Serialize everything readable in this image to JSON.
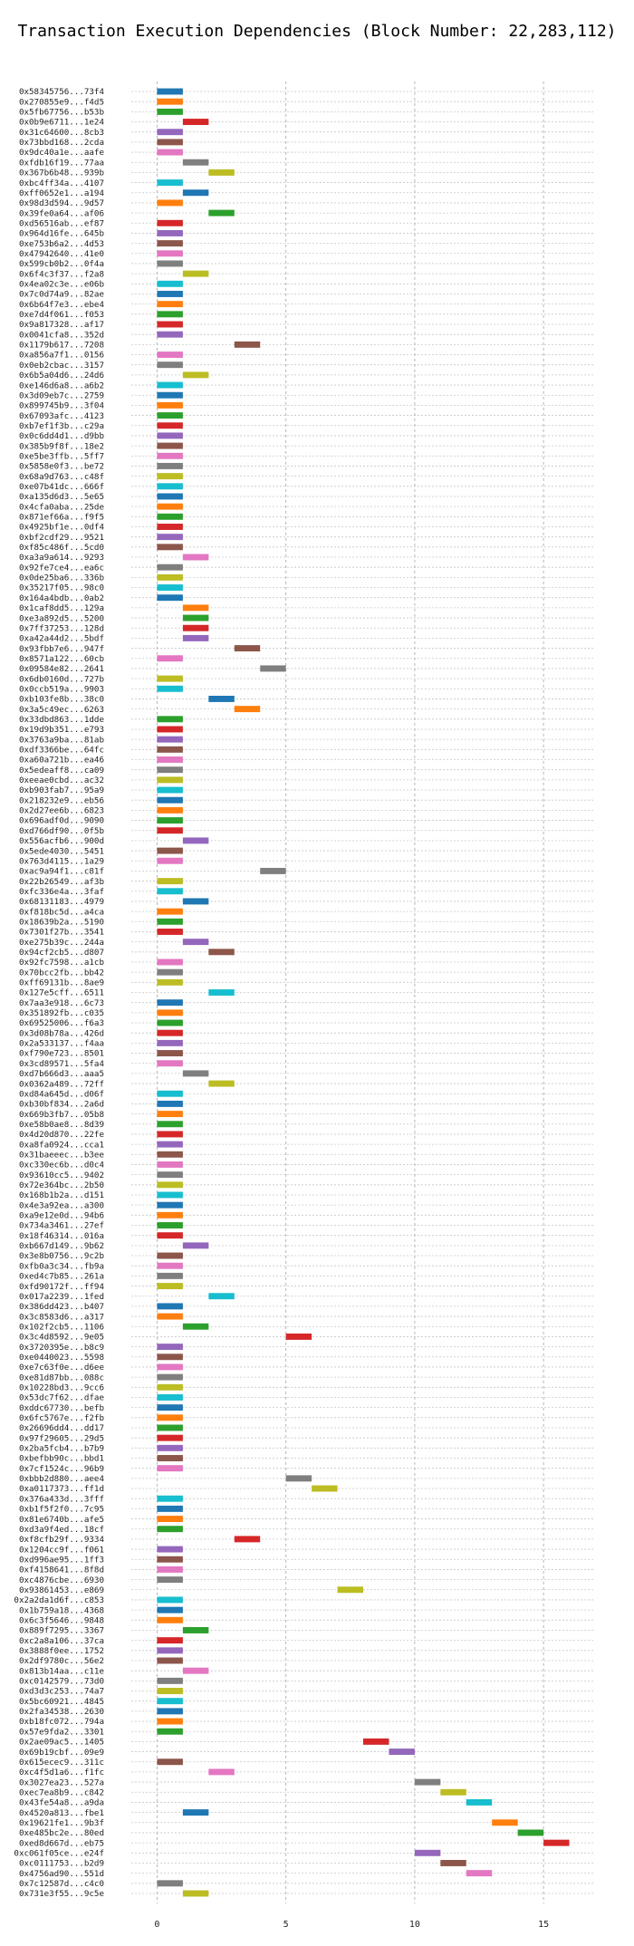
{
  "chart_data": {
    "type": "bar",
    "orientation": "horizontal",
    "title": "Transaction Execution Dependencies (Block Number: 22,283,112)",
    "xlabel": "",
    "ylabel": "",
    "xlim": [
      -1,
      17
    ],
    "xticks": [
      0,
      5,
      10,
      15
    ],
    "grid": true,
    "palette": [
      "#1f77b4",
      "#ff7f0e",
      "#2ca02c",
      "#d62728",
      "#9467bd",
      "#8c564b",
      "#e377c2",
      "#7f7f7f",
      "#bcbd22",
      "#17becf"
    ],
    "transactions": [
      {
        "label": "0x58345756...73f4",
        "start": 0,
        "end": 1
      },
      {
        "label": "0x270855e9...f4d5",
        "start": 0,
        "end": 1
      },
      {
        "label": "0x5fb67756...b53b",
        "start": 0,
        "end": 1
      },
      {
        "label": "0x0b9e6711...1e24",
        "start": 1,
        "end": 2
      },
      {
        "label": "0x31c64600...8cb3",
        "start": 0,
        "end": 1
      },
      {
        "label": "0x73bbd168...2cda",
        "start": 0,
        "end": 1
      },
      {
        "label": "0x9dc40a1e...aafe",
        "start": 0,
        "end": 1
      },
      {
        "label": "0xfdb16f19...77aa",
        "start": 1,
        "end": 2
      },
      {
        "label": "0x367b6b48...939b",
        "start": 2,
        "end": 3
      },
      {
        "label": "0xbc4ff34a...4107",
        "start": 0,
        "end": 1
      },
      {
        "label": "0xff0652e1...a194",
        "start": 1,
        "end": 2
      },
      {
        "label": "0x98d3d594...9d57",
        "start": 0,
        "end": 1
      },
      {
        "label": "0x39fe0a64...af06",
        "start": 2,
        "end": 3
      },
      {
        "label": "0xd56516ab...ef87",
        "start": 0,
        "end": 1
      },
      {
        "label": "0x964d16fe...645b",
        "start": 0,
        "end": 1
      },
      {
        "label": "0xe753b6a2...4d53",
        "start": 0,
        "end": 1
      },
      {
        "label": "0x47942640...41e0",
        "start": 0,
        "end": 1
      },
      {
        "label": "0x599cb0b2...0f4a",
        "start": 0,
        "end": 1
      },
      {
        "label": "0x6f4c3f37...f2a8",
        "start": 1,
        "end": 2
      },
      {
        "label": "0x4ea02c3e...e06b",
        "start": 0,
        "end": 1
      },
      {
        "label": "0x7c0d74a9...82ae",
        "start": 0,
        "end": 1
      },
      {
        "label": "0x6b64f7e3...ebe4",
        "start": 0,
        "end": 1
      },
      {
        "label": "0xe7d4f061...f053",
        "start": 0,
        "end": 1
      },
      {
        "label": "0x9a817328...af17",
        "start": 0,
        "end": 1
      },
      {
        "label": "0x0041cfa8...352d",
        "start": 0,
        "end": 1
      },
      {
        "label": "0x1179b617...7208",
        "start": 3,
        "end": 4
      },
      {
        "label": "0xa856a7f1...0156",
        "start": 0,
        "end": 1
      },
      {
        "label": "0x0eb2cbac...3157",
        "start": 0,
        "end": 1
      },
      {
        "label": "0x6b5a04d6...24d6",
        "start": 1,
        "end": 2
      },
      {
        "label": "0xe146d6a8...a6b2",
        "start": 0,
        "end": 1
      },
      {
        "label": "0x3d09eb7c...2759",
        "start": 0,
        "end": 1
      },
      {
        "label": "0x899745b9...3f04",
        "start": 0,
        "end": 1
      },
      {
        "label": "0x67093afc...4123",
        "start": 0,
        "end": 1
      },
      {
        "label": "0xb7ef1f3b...c29a",
        "start": 0,
        "end": 1
      },
      {
        "label": "0x0c6dd4d1...d9bb",
        "start": 0,
        "end": 1
      },
      {
        "label": "0x385b9f8f...18e2",
        "start": 0,
        "end": 1
      },
      {
        "label": "0xe5be3ffb...5ff7",
        "start": 0,
        "end": 1
      },
      {
        "label": "0x5858e0f3...be72",
        "start": 0,
        "end": 1
      },
      {
        "label": "0x68a9d763...c48f",
        "start": 0,
        "end": 1
      },
      {
        "label": "0xe07b41dc...666f",
        "start": 0,
        "end": 1
      },
      {
        "label": "0xa135d6d3...5e65",
        "start": 0,
        "end": 1
      },
      {
        "label": "0x4cfa0aba...25de",
        "start": 0,
        "end": 1
      },
      {
        "label": "0x871ef66a...f9f5",
        "start": 0,
        "end": 1
      },
      {
        "label": "0x4925bf1e...0df4",
        "start": 0,
        "end": 1
      },
      {
        "label": "0xbf2cdf29...9521",
        "start": 0,
        "end": 1
      },
      {
        "label": "0xf85c486f...5cd0",
        "start": 0,
        "end": 1
      },
      {
        "label": "0xa3a9a614...9293",
        "start": 1,
        "end": 2
      },
      {
        "label": "0x92fe7ce4...ea6c",
        "start": 0,
        "end": 1
      },
      {
        "label": "0x0de25ba6...336b",
        "start": 0,
        "end": 1
      },
      {
        "label": "0x35217f05...98c0",
        "start": 0,
        "end": 1
      },
      {
        "label": "0x164a4bdb...0ab2",
        "start": 0,
        "end": 1
      },
      {
        "label": "0x1caf8dd5...129a",
        "start": 1,
        "end": 2
      },
      {
        "label": "0xe3a892d5...5200",
        "start": 1,
        "end": 2
      },
      {
        "label": "0x7ff37253...128d",
        "start": 1,
        "end": 2
      },
      {
        "label": "0xa42a44d2...5bdf",
        "start": 1,
        "end": 2
      },
      {
        "label": "0x93fbb7e6...947f",
        "start": 3,
        "end": 4
      },
      {
        "label": "0x8571a122...60cb",
        "start": 0,
        "end": 1
      },
      {
        "label": "0x09584e82...2641",
        "start": 4,
        "end": 5
      },
      {
        "label": "0x6db0160d...727b",
        "start": 0,
        "end": 1
      },
      {
        "label": "0x0ccb519a...9903",
        "start": 0,
        "end": 1
      },
      {
        "label": "0xb103fe8b...38c0",
        "start": 2,
        "end": 3
      },
      {
        "label": "0x3a5c49ec...6263",
        "start": 3,
        "end": 4
      },
      {
        "label": "0x33dbd863...1dde",
        "start": 0,
        "end": 1
      },
      {
        "label": "0x19d9b351...e793",
        "start": 0,
        "end": 1
      },
      {
        "label": "0x3763a9ba...81ab",
        "start": 0,
        "end": 1
      },
      {
        "label": "0xdf3366be...64fc",
        "start": 0,
        "end": 1
      },
      {
        "label": "0xa60a721b...ea46",
        "start": 0,
        "end": 1
      },
      {
        "label": "0x5edeaff8...ca09",
        "start": 0,
        "end": 1
      },
      {
        "label": "0xeeae0cbd...ac32",
        "start": 0,
        "end": 1
      },
      {
        "label": "0xb903fab7...95a9",
        "start": 0,
        "end": 1
      },
      {
        "label": "0x218232e9...eb56",
        "start": 0,
        "end": 1
      },
      {
        "label": "0x2d27ee6b...6823",
        "start": 0,
        "end": 1
      },
      {
        "label": "0x696adf0d...9090",
        "start": 0,
        "end": 1
      },
      {
        "label": "0xd766df90...0f5b",
        "start": 0,
        "end": 1
      },
      {
        "label": "0x556acfb6...900d",
        "start": 1,
        "end": 2
      },
      {
        "label": "0x5ede4030...5451",
        "start": 0,
        "end": 1
      },
      {
        "label": "0x763d4115...1a29",
        "start": 0,
        "end": 1
      },
      {
        "label": "0xac9a94f1...c81f",
        "start": 4,
        "end": 5
      },
      {
        "label": "0x22b26549...af3b",
        "start": 0,
        "end": 1
      },
      {
        "label": "0xfc336e4a...3faf",
        "start": 0,
        "end": 1
      },
      {
        "label": "0x68131183...4979",
        "start": 1,
        "end": 2
      },
      {
        "label": "0xf818bc5d...a4ca",
        "start": 0,
        "end": 1
      },
      {
        "label": "0x18639b2a...5190",
        "start": 0,
        "end": 1
      },
      {
        "label": "0x7301f27b...3541",
        "start": 0,
        "end": 1
      },
      {
        "label": "0xe275b39c...244a",
        "start": 1,
        "end": 2
      },
      {
        "label": "0x94cf2cb5...d807",
        "start": 2,
        "end": 3
      },
      {
        "label": "0x92fc7598...a1cb",
        "start": 0,
        "end": 1
      },
      {
        "label": "0x70bcc2fb...bb42",
        "start": 0,
        "end": 1
      },
      {
        "label": "0xff69131b...8ae9",
        "start": 0,
        "end": 1
      },
      {
        "label": "0x127e5cff...6511",
        "start": 2,
        "end": 3
      },
      {
        "label": "0x7aa3e918...6c73",
        "start": 0,
        "end": 1
      },
      {
        "label": "0x351892fb...c035",
        "start": 0,
        "end": 1
      },
      {
        "label": "0x69525006...f6a3",
        "start": 0,
        "end": 1
      },
      {
        "label": "0x3d08b78a...426d",
        "start": 0,
        "end": 1
      },
      {
        "label": "0x2a533137...f4aa",
        "start": 0,
        "end": 1
      },
      {
        "label": "0xf790e723...8501",
        "start": 0,
        "end": 1
      },
      {
        "label": "0x3cd89571...5fa4",
        "start": 0,
        "end": 1
      },
      {
        "label": "0xd7b666d3...aaa5",
        "start": 1,
        "end": 2
      },
      {
        "label": "0x0362a489...72ff",
        "start": 2,
        "end": 3
      },
      {
        "label": "0xd84a645d...d06f",
        "start": 0,
        "end": 1
      },
      {
        "label": "0xb30bf834...2a6d",
        "start": 0,
        "end": 1
      },
      {
        "label": "0x669b3fb7...05b8",
        "start": 0,
        "end": 1
      },
      {
        "label": "0xe58b0ae8...8d39",
        "start": 0,
        "end": 1
      },
      {
        "label": "0x4d20d870...22fe",
        "start": 0,
        "end": 1
      },
      {
        "label": "0xa8fa0924...cca1",
        "start": 0,
        "end": 1
      },
      {
        "label": "0x31baeeec...b3ee",
        "start": 0,
        "end": 1
      },
      {
        "label": "0xc330ec6b...d0c4",
        "start": 0,
        "end": 1
      },
      {
        "label": "0x93610cc5...9402",
        "start": 0,
        "end": 1
      },
      {
        "label": "0x72e364bc...2b50",
        "start": 0,
        "end": 1
      },
      {
        "label": "0x168b1b2a...d151",
        "start": 0,
        "end": 1
      },
      {
        "label": "0x4e3a92ea...a300",
        "start": 0,
        "end": 1
      },
      {
        "label": "0xa9e12e0d...94b6",
        "start": 0,
        "end": 1
      },
      {
        "label": "0x734a3461...27ef",
        "start": 0,
        "end": 1
      },
      {
        "label": "0x18f46314...016a",
        "start": 0,
        "end": 1
      },
      {
        "label": "0xb667d149...9b62",
        "start": 1,
        "end": 2
      },
      {
        "label": "0x3e8b0756...9c2b",
        "start": 0,
        "end": 1
      },
      {
        "label": "0xfb0a3c34...fb9a",
        "start": 0,
        "end": 1
      },
      {
        "label": "0xed4c7b85...261a",
        "start": 0,
        "end": 1
      },
      {
        "label": "0xfd90172f...ff94",
        "start": 0,
        "end": 1
      },
      {
        "label": "0x017a2239...1fed",
        "start": 2,
        "end": 3
      },
      {
        "label": "0x386dd423...b407",
        "start": 0,
        "end": 1
      },
      {
        "label": "0x3c8583d6...a317",
        "start": 0,
        "end": 1
      },
      {
        "label": "0x102f2cb5...1106",
        "start": 1,
        "end": 2
      },
      {
        "label": "0x3c4d8592...9e05",
        "start": 5,
        "end": 6
      },
      {
        "label": "0x3720395e...b8c9",
        "start": 0,
        "end": 1
      },
      {
        "label": "0xe0440023...5598",
        "start": 0,
        "end": 1
      },
      {
        "label": "0xe7c63f0e...d6ee",
        "start": 0,
        "end": 1
      },
      {
        "label": "0xe81d87bb...088c",
        "start": 0,
        "end": 1
      },
      {
        "label": "0x10228bd3...9cc6",
        "start": 0,
        "end": 1
      },
      {
        "label": "0x53dc7f62...dfae",
        "start": 0,
        "end": 1
      },
      {
        "label": "0xddc67730...befb",
        "start": 0,
        "end": 1
      },
      {
        "label": "0x6fc5767e...f2fb",
        "start": 0,
        "end": 1
      },
      {
        "label": "0x26696dd4...dd17",
        "start": 0,
        "end": 1
      },
      {
        "label": "0x97f29605...29d5",
        "start": 0,
        "end": 1
      },
      {
        "label": "0x2ba5fcb4...b7b9",
        "start": 0,
        "end": 1
      },
      {
        "label": "0xbefbb90c...bbd1",
        "start": 0,
        "end": 1
      },
      {
        "label": "0x7cf1524c...96b9",
        "start": 0,
        "end": 1
      },
      {
        "label": "0xbbb2d880...aee4",
        "start": 5,
        "end": 6
      },
      {
        "label": "0xa0117373...ff1d",
        "start": 6,
        "end": 7
      },
      {
        "label": "0x376a433d...3fff",
        "start": 0,
        "end": 1
      },
      {
        "label": "0xb1f5f2f0...7c95",
        "start": 0,
        "end": 1
      },
      {
        "label": "0x81e6740b...afe5",
        "start": 0,
        "end": 1
      },
      {
        "label": "0xd3a9f4ed...18cf",
        "start": 0,
        "end": 1
      },
      {
        "label": "0xf8cfb29f...9334",
        "start": 3,
        "end": 4
      },
      {
        "label": "0x1204cc9f...f061",
        "start": 0,
        "end": 1
      },
      {
        "label": "0xd996ae95...1ff3",
        "start": 0,
        "end": 1
      },
      {
        "label": "0xf4158641...8f8d",
        "start": 0,
        "end": 1
      },
      {
        "label": "0xc4876cbe...6930",
        "start": 0,
        "end": 1
      },
      {
        "label": "0x93861453...e869",
        "start": 7,
        "end": 8
      },
      {
        "label": "0x2a2da1d6f...c853",
        "start": 0,
        "end": 1
      },
      {
        "label": "0x1b759a18...4368",
        "start": 0,
        "end": 1
      },
      {
        "label": "0x6c3f5646...9848",
        "start": 0,
        "end": 1
      },
      {
        "label": "0x889f7295...3367",
        "start": 1,
        "end": 2
      },
      {
        "label": "0xc2a8a106...37ca",
        "start": 0,
        "end": 1
      },
      {
        "label": "0x3888f0ee...1752",
        "start": 0,
        "end": 1
      },
      {
        "label": "0x2df9780c...56e2",
        "start": 0,
        "end": 1
      },
      {
        "label": "0x813b14aa...c11e",
        "start": 1,
        "end": 2
      },
      {
        "label": "0xc0142579...73d0",
        "start": 0,
        "end": 1
      },
      {
        "label": "0xd3d3c253...74a7",
        "start": 0,
        "end": 1
      },
      {
        "label": "0x5bc60921...4845",
        "start": 0,
        "end": 1
      },
      {
        "label": "0x2fa34538...2630",
        "start": 0,
        "end": 1
      },
      {
        "label": "0xb18fc072...794a",
        "start": 0,
        "end": 1
      },
      {
        "label": "0x57e9fda2...3301",
        "start": 0,
        "end": 1
      },
      {
        "label": "0x2ae09ac5...1405",
        "start": 8,
        "end": 9
      },
      {
        "label": "0x69b19cbf...09e9",
        "start": 9,
        "end": 10
      },
      {
        "label": "0x615ecec9...311c",
        "start": 0,
        "end": 1
      },
      {
        "label": "0xc4f5d1a6...f1fc",
        "start": 2,
        "end": 3
      },
      {
        "label": "0x3027ea23...527a",
        "start": 10,
        "end": 11
      },
      {
        "label": "0xec7ea8b9...c842",
        "start": 11,
        "end": 12
      },
      {
        "label": "0x43fe54a8...a9da",
        "start": 12,
        "end": 13
      },
      {
        "label": "0x4520a813...fbe1",
        "start": 1,
        "end": 2
      },
      {
        "label": "0x19621fe1...9b3f",
        "start": 13,
        "end": 14
      },
      {
        "label": "0xe485bc2e...80ed",
        "start": 14,
        "end": 15
      },
      {
        "label": "0xed8d667d...eb75",
        "start": 15,
        "end": 16
      },
      {
        "label": "0xc061f05ce...e24f",
        "start": 10,
        "end": 11
      },
      {
        "label": "0xc0111753...b2d9",
        "start": 11,
        "end": 12
      },
      {
        "label": "0x4756ad90...551d",
        "start": 12,
        "end": 13
      },
      {
        "label": "0x7c12587d...c4c0",
        "start": 0,
        "end": 1
      },
      {
        "label": "0x731e3f55...9c5e",
        "start": 1,
        "end": 2
      }
    ]
  }
}
